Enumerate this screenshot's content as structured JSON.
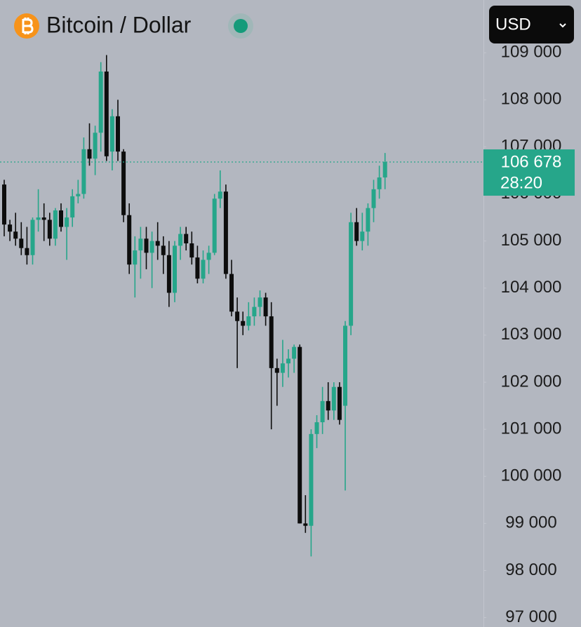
{
  "header": {
    "title": "Bitcoin / Dollar",
    "currency": "USD"
  },
  "chart_data": {
    "type": "candlestick",
    "up_color": "#26a68a",
    "down_color": "#0d0d0d",
    "ylim": [
      96800,
      110120
    ],
    "yticks": [
      {
        "value": 97000,
        "label": "97 000"
      },
      {
        "value": 98000,
        "label": "98 000"
      },
      {
        "value": 99000,
        "label": "99 000"
      },
      {
        "value": 100000,
        "label": "100 000"
      },
      {
        "value": 101000,
        "label": "101 000"
      },
      {
        "value": 102000,
        "label": "102 000"
      },
      {
        "value": 103000,
        "label": "103 000"
      },
      {
        "value": 104000,
        "label": "104 000"
      },
      {
        "value": 105000,
        "label": "105 000"
      },
      {
        "value": 106000,
        "label": "106 000"
      },
      {
        "value": 107000,
        "label": "107 000"
      },
      {
        "value": 108000,
        "label": "108 000"
      },
      {
        "value": 109000,
        "label": "109 000"
      }
    ],
    "open": [
      106200,
      105350,
      105200,
      105050,
      104850,
      104700,
      105450,
      105500,
      105450,
      105050,
      105650,
      105300,
      105500,
      105950,
      106000,
      106950,
      106750,
      107300,
      108600,
      106900,
      107650,
      106900,
      105550,
      104500,
      104800,
      105050,
      104750,
      105000,
      104900,
      104700,
      103900,
      104900,
      105150,
      104950,
      104650,
      104200,
      104600,
      104750,
      105900,
      106050,
      104300,
      103500,
      103300,
      103200,
      103400,
      103600,
      103800,
      103400,
      102300,
      102200,
      102400,
      102500,
      102750,
      99000,
      98950,
      100900,
      101150,
      101600,
      101400,
      101900,
      101500,
      103200,
      105400,
      105000,
      105200,
      105700,
      106100,
      106350
    ],
    "high": [
      106300,
      105450,
      105600,
      105400,
      105300,
      105500,
      106100,
      105800,
      105600,
      105700,
      105800,
      105700,
      106100,
      106300,
      107200,
      107500,
      107450,
      108800,
      108950,
      107800,
      108000,
      106950,
      105800,
      105100,
      105300,
      105300,
      105200,
      105400,
      105100,
      105000,
      105000,
      105300,
      105300,
      105200,
      104900,
      104800,
      104900,
      106000,
      106500,
      106200,
      104600,
      103800,
      103500,
      103700,
      103800,
      103950,
      103900,
      103700,
      102500,
      102900,
      102700,
      102800,
      102800,
      99600,
      101000,
      101300,
      101900,
      102000,
      102000,
      102000,
      103300,
      105600,
      105700,
      105600,
      105800,
      106300,
      106600,
      106870
    ],
    "low": [
      105100,
      105000,
      104900,
      104700,
      104500,
      104500,
      105200,
      105000,
      104900,
      104900,
      105200,
      104600,
      105300,
      105800,
      105900,
      106600,
      106400,
      106900,
      106700,
      106500,
      106700,
      105400,
      104300,
      103800,
      104200,
      104400,
      104000,
      104600,
      104300,
      103600,
      103700,
      104600,
      104800,
      104500,
      104100,
      104100,
      104300,
      104700,
      105700,
      104200,
      103400,
      102300,
      103000,
      103100,
      103200,
      103400,
      103200,
      101000,
      101500,
      101900,
      102100,
      102200,
      99000,
      98800,
      98300,
      100600,
      100900,
      101200,
      101200,
      101100,
      99700,
      103000,
      104900,
      104800,
      104900,
      105400,
      105900,
      106100
    ],
    "close": [
      105350,
      105200,
      105050,
      104850,
      104700,
      105450,
      105500,
      105450,
      105050,
      105650,
      105300,
      105500,
      105950,
      106000,
      106950,
      106750,
      107300,
      108600,
      106800,
      107650,
      106900,
      105550,
      104500,
      104800,
      105050,
      104750,
      105000,
      104900,
      104700,
      103900,
      104900,
      105150,
      104950,
      104650,
      104200,
      104600,
      104750,
      105900,
      106050,
      104300,
      103500,
      103300,
      103200,
      103400,
      103600,
      103800,
      103400,
      102300,
      102200,
      102400,
      102500,
      102750,
      99000,
      98950,
      100900,
      101150,
      101600,
      101400,
      101900,
      101200,
      103200,
      105400,
      105000,
      105200,
      105700,
      106100,
      106350,
      106678
    ],
    "last_price": {
      "value": 106678,
      "label": "106 678"
    },
    "countdown": "28:20"
  }
}
